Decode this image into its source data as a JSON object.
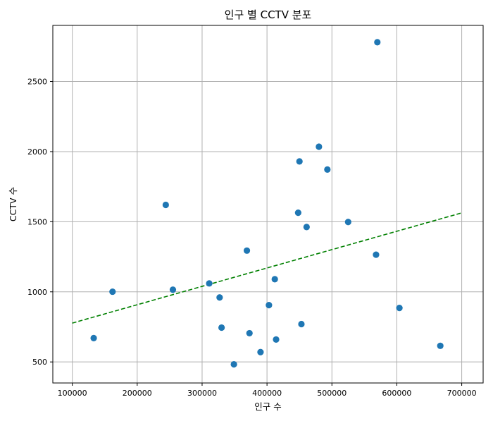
{
  "chart_data": {
    "type": "scatter",
    "title": "인구 별 CCTV 분포",
    "xlabel": "인구 수",
    "ylabel": "CCTV 수",
    "xlim": [
      70000,
      733000
    ],
    "ylim": [
      350,
      2900
    ],
    "xticks": [
      100000,
      200000,
      300000,
      400000,
      500000,
      600000,
      700000
    ],
    "yticks": [
      500,
      1000,
      1500,
      2000,
      2500
    ],
    "grid": true,
    "colors": {
      "points": "#1f77b4",
      "trendline": "#008000",
      "grid": "#b0b0b0",
      "axes": "#000000"
    },
    "series": [
      {
        "type": "scatter",
        "x": [
          570000,
          480000,
          450000,
          493000,
          244000,
          448000,
          525000,
          461000,
          369000,
          568000,
          412000,
          162000,
          255000,
          311000,
          327000,
          403000,
          604000,
          133000,
          330000,
          453000,
          373000,
          414000,
          390000,
          667000,
          349000
        ],
        "y": [
          2780,
          2035,
          1930,
          1872,
          1620,
          1564,
          1498,
          1462,
          1294,
          1265,
          1090,
          1001,
          1015,
          1060,
          960,
          905,
          885,
          670,
          745,
          770,
          705,
          660,
          570,
          615,
          483
        ]
      },
      {
        "type": "line",
        "style": "dashed",
        "x": [
          100000,
          700000
        ],
        "y": [
          777,
          1563
        ]
      }
    ]
  }
}
